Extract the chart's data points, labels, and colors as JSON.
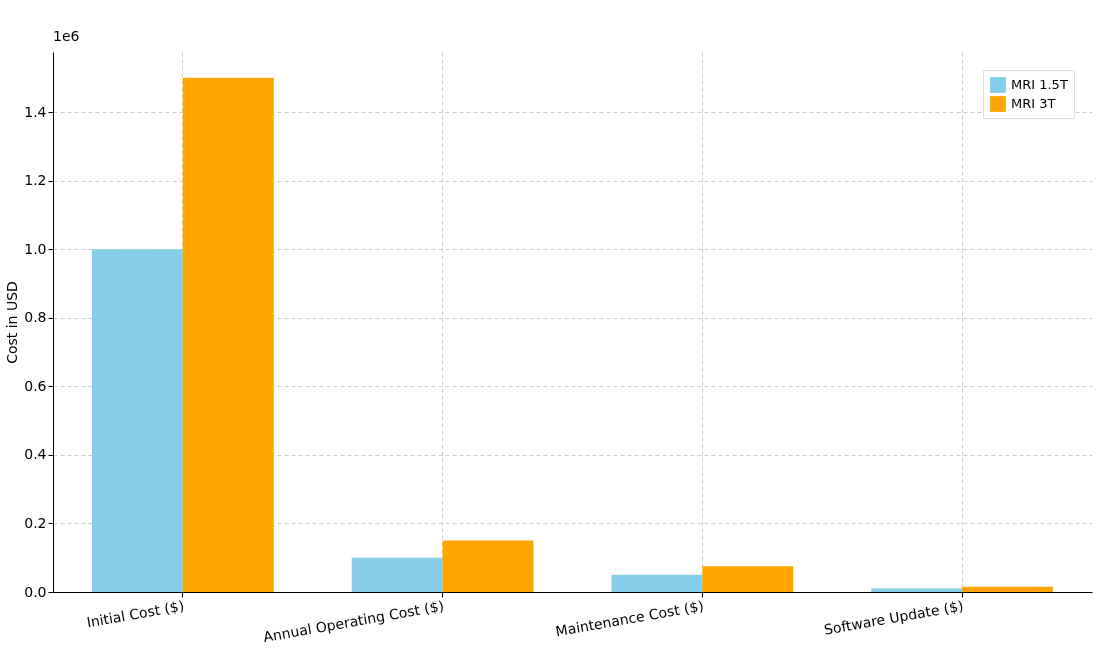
{
  "chart_data": {
    "type": "bar",
    "ylabel": "Cost in USD",
    "categories": [
      "Initial Cost ($)",
      "Annual Operating Cost ($)",
      "Maintenance Cost ($)",
      "Software Update ($)"
    ],
    "series": [
      {
        "name": "MRI 1.5T",
        "color": "#87ceeb",
        "values": [
          1.0,
          0.1,
          0.05,
          0.01
        ]
      },
      {
        "name": "MRI 3T",
        "color": "#ffa500",
        "values": [
          1.5,
          0.15,
          0.075,
          0.015
        ]
      }
    ],
    "ylim": [
      0,
      1.575
    ],
    "yticks": [
      {
        "value": 0,
        "label": "0.0"
      },
      0.2,
      0.4,
      0.6,
      0.8,
      {
        "value": 1,
        "label": "1.0"
      },
      1.2,
      1.4
    ],
    "annotations": [
      "1e6"
    ],
    "grid": true,
    "legend": "top right"
  }
}
